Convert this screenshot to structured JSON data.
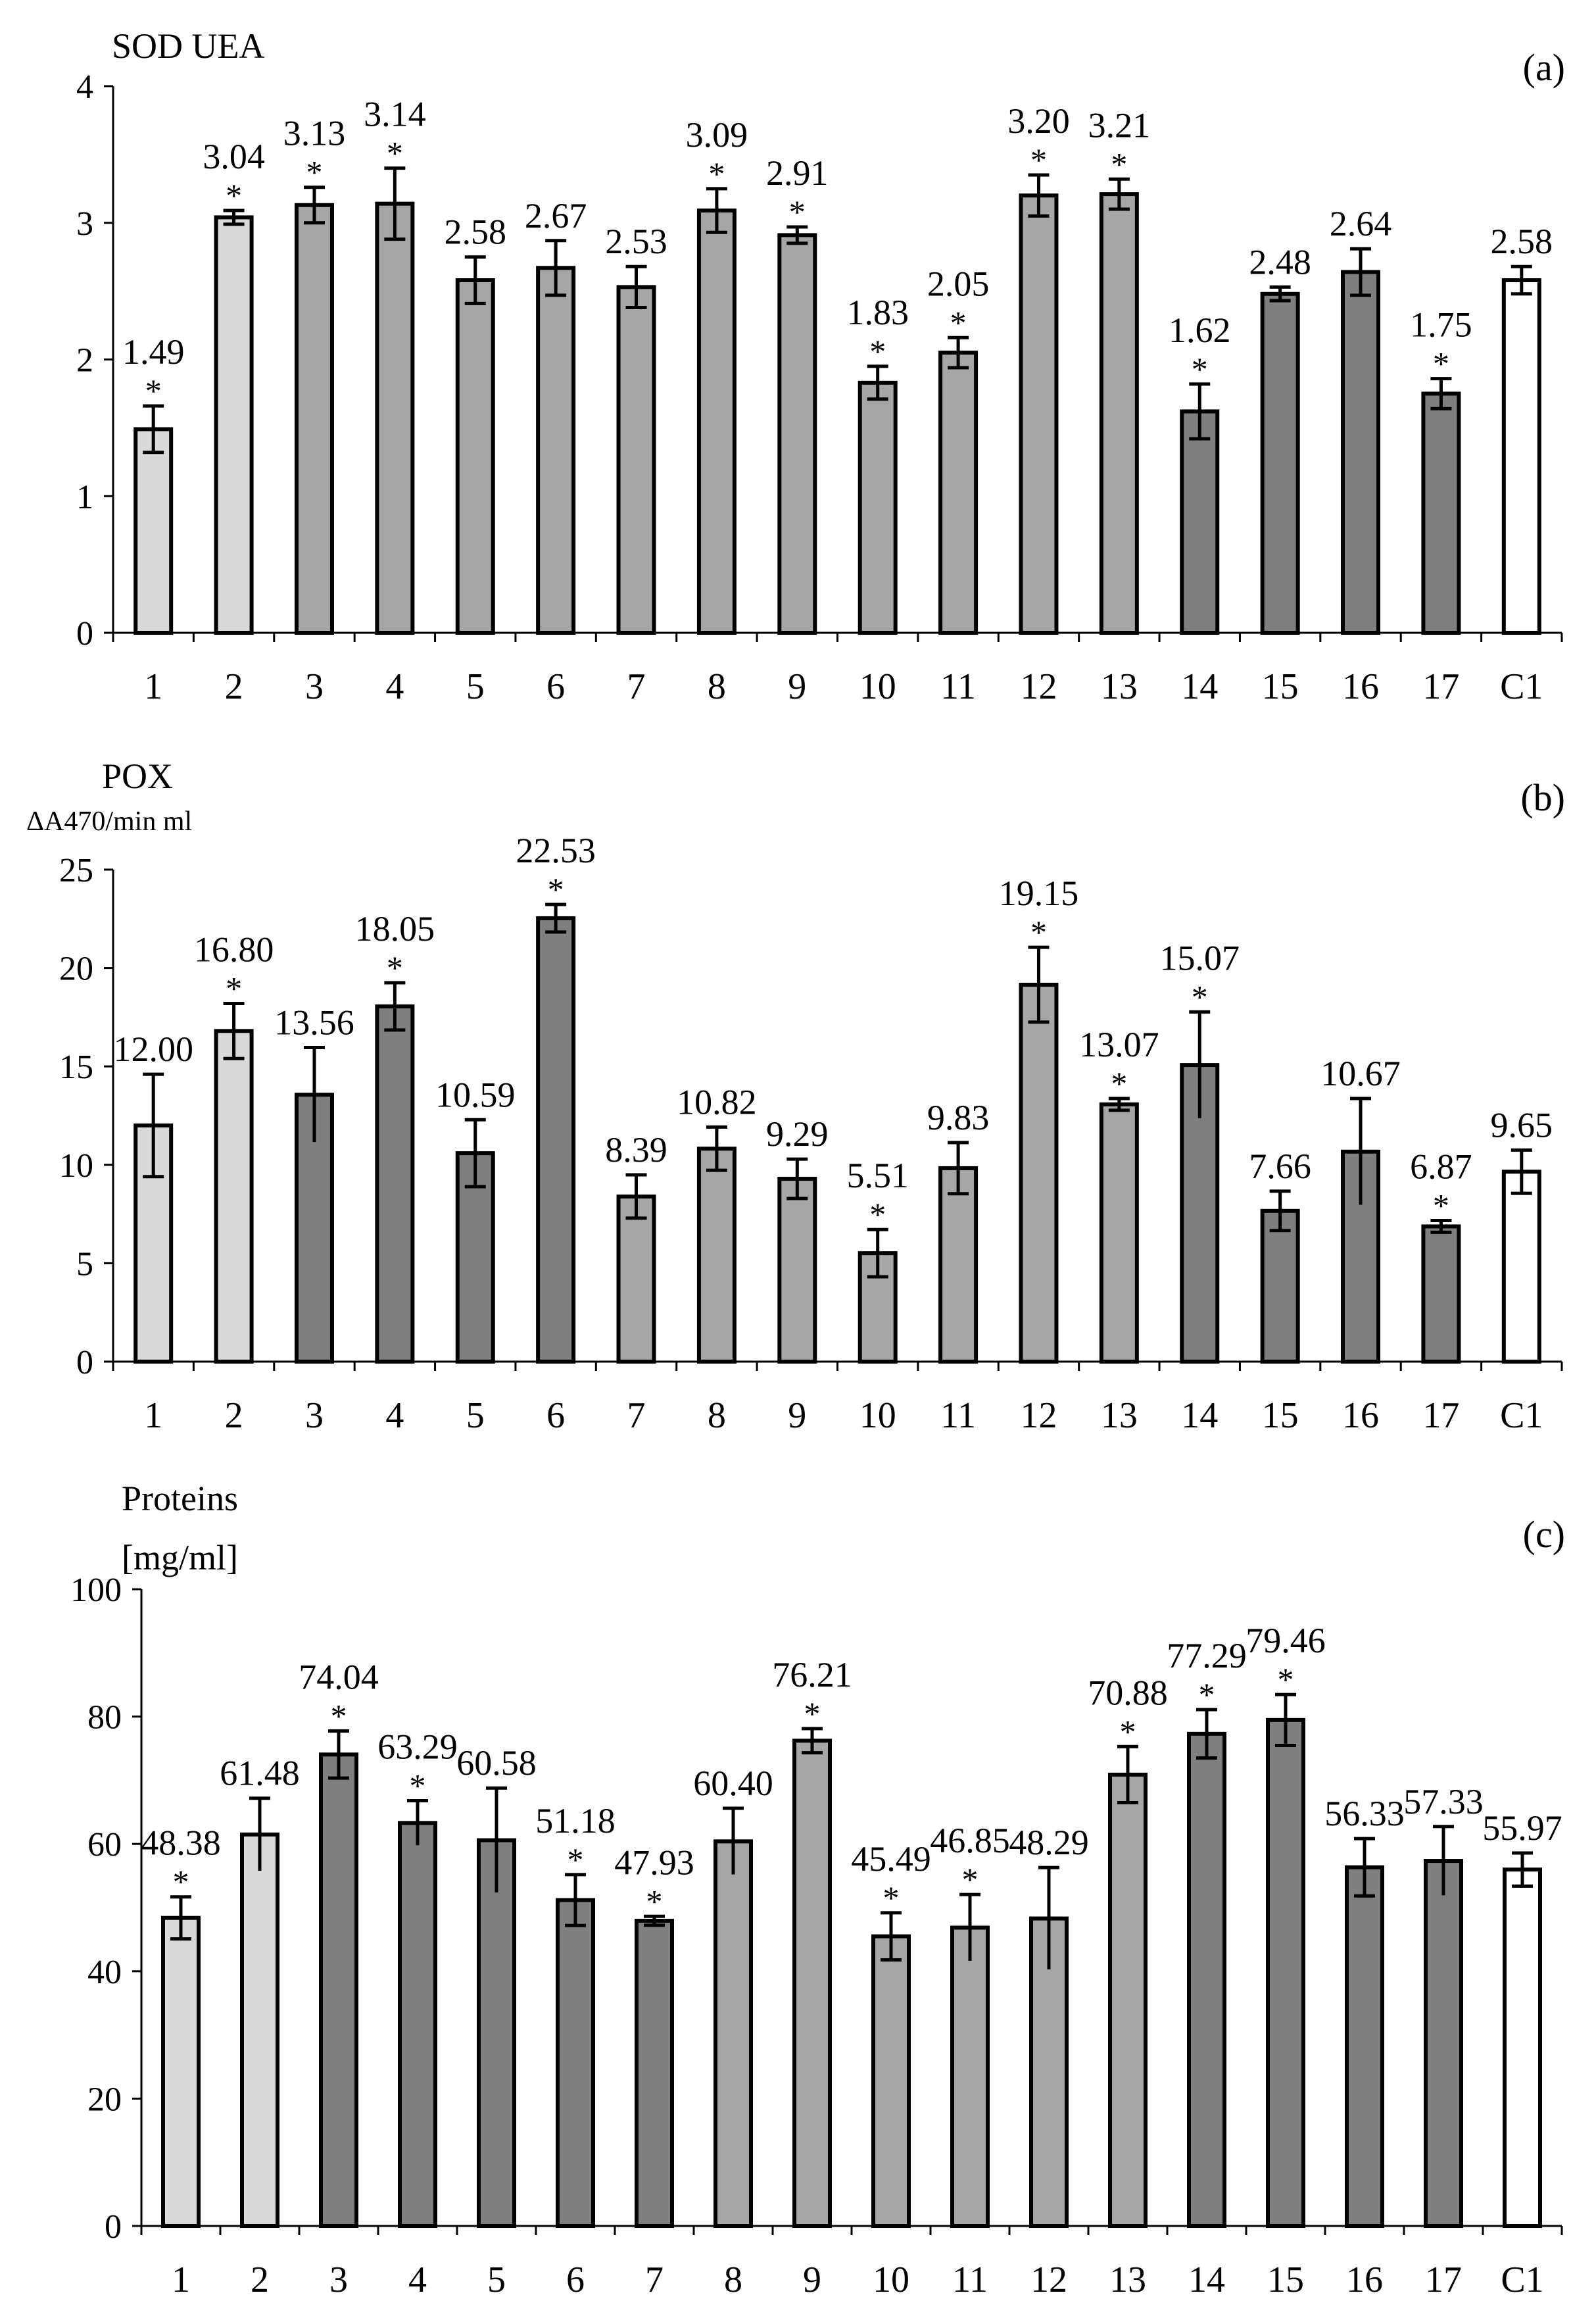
{
  "chart_data": [
    {
      "type": "bar",
      "panel": "(a)",
      "title": "SOD UEA",
      "unit": "",
      "categories": [
        "1",
        "2",
        "3",
        "4",
        "5",
        "6",
        "7",
        "8",
        "9",
        "10",
        "11",
        "12",
        "13",
        "14",
        "15",
        "16",
        "17",
        "C1"
      ],
      "values": [
        1.49,
        3.04,
        3.13,
        3.14,
        2.58,
        2.67,
        2.53,
        3.09,
        2.91,
        1.83,
        2.05,
        3.2,
        3.21,
        1.62,
        2.48,
        2.64,
        1.75,
        2.58
      ],
      "value_labels": [
        "1.49",
        "3.04",
        "3.13",
        "3.14",
        "2.58",
        "2.67",
        "2.53",
        "3.09",
        "2.91",
        "1.83",
        "2.05",
        "3.20",
        "3.21",
        "1.62",
        "2.48",
        "2.64",
        "1.75",
        "2.58"
      ],
      "errors": [
        0.17,
        0.05,
        0.13,
        0.26,
        0.17,
        0.2,
        0.15,
        0.16,
        0.06,
        0.12,
        0.11,
        0.15,
        0.11,
        0.2,
        0.05,
        0.17,
        0.11,
        0.1
      ],
      "error_style": [
        "box",
        "box",
        "box",
        "box",
        "box",
        "box",
        "box",
        "box",
        "box",
        "box",
        "box",
        "box",
        "box",
        "box",
        "box",
        "box",
        "box",
        "box"
      ],
      "significant": [
        true,
        true,
        true,
        true,
        false,
        false,
        false,
        true,
        true,
        true,
        true,
        true,
        true,
        true,
        false,
        false,
        true,
        false
      ],
      "shades": [
        "#d9d9d9",
        "#d9d9d9",
        "#a6a6a6",
        "#a6a6a6",
        "#a6a6a6",
        "#a6a6a6",
        "#a6a6a6",
        "#a6a6a6",
        "#a6a6a6",
        "#a6a6a6",
        "#a6a6a6",
        "#a6a6a6",
        "#a6a6a6",
        "#7f7f7f",
        "#7f7f7f",
        "#7f7f7f",
        "#7f7f7f",
        "#ffffff"
      ],
      "ylim": [
        0,
        4
      ],
      "yticks": [
        "0",
        "1",
        "2",
        "3",
        "4"
      ],
      "tick_step": 1
    },
    {
      "type": "bar",
      "panel": "(b)",
      "title": "POX",
      "unit": "ΔA470/min ml",
      "categories": [
        "1",
        "2",
        "3",
        "4",
        "5",
        "6",
        "7",
        "8",
        "9",
        "10",
        "11",
        "12",
        "13",
        "14",
        "15",
        "16",
        "17",
        "C1"
      ],
      "values": [
        12.0,
        16.8,
        13.56,
        18.05,
        10.59,
        22.53,
        8.39,
        10.82,
        9.29,
        5.51,
        9.83,
        19.15,
        13.07,
        15.07,
        7.66,
        10.67,
        6.87,
        9.65
      ],
      "value_labels": [
        "12.00",
        "16.80",
        "13.56",
        "18.05",
        "10.59",
        "22.53",
        "8.39",
        "10.82",
        "9.29",
        "5.51",
        "9.83",
        "19.15",
        "13.07",
        "15.07",
        "7.66",
        "10.67",
        "6.87",
        "9.65"
      ],
      "errors": [
        2.6,
        1.4,
        2.4,
        1.2,
        1.7,
        0.7,
        1.1,
        1.1,
        1.0,
        1.2,
        1.3,
        1.9,
        0.3,
        2.7,
        1.0,
        2.7,
        0.3,
        1.1
      ],
      "error_style": [
        "box",
        "box",
        "cross",
        "box",
        "box",
        "box",
        "box",
        "box",
        "box",
        "box",
        "box",
        "box",
        "box",
        "cross",
        "box",
        "cross",
        "box",
        "box"
      ],
      "significant": [
        false,
        true,
        false,
        true,
        false,
        true,
        false,
        false,
        false,
        true,
        false,
        true,
        true,
        true,
        false,
        false,
        true,
        false
      ],
      "shades": [
        "#d9d9d9",
        "#d9d9d9",
        "#7f7f7f",
        "#7f7f7f",
        "#7f7f7f",
        "#7f7f7f",
        "#a6a6a6",
        "#a6a6a6",
        "#a6a6a6",
        "#a6a6a6",
        "#a6a6a6",
        "#a6a6a6",
        "#a6a6a6",
        "#7f7f7f",
        "#7f7f7f",
        "#7f7f7f",
        "#7f7f7f",
        "#ffffff"
      ],
      "ylim": [
        0,
        25
      ],
      "yticks": [
        "0",
        "5",
        "10",
        "15",
        "20",
        "25"
      ],
      "tick_step": 5
    },
    {
      "type": "bar",
      "panel": "(c)",
      "title": "Proteins",
      "unit": "[mg/ml]",
      "categories": [
        "1",
        "2",
        "3",
        "4",
        "5",
        "6",
        "7",
        "8",
        "9",
        "10",
        "11",
        "12",
        "13",
        "14",
        "15",
        "16",
        "17",
        "C1"
      ],
      "values": [
        48.38,
        61.48,
        74.04,
        63.29,
        60.58,
        51.18,
        47.93,
        60.4,
        76.21,
        45.49,
        46.85,
        48.29,
        70.88,
        77.29,
        79.46,
        56.33,
        57.33,
        55.97
      ],
      "value_labels": [
        "48.38",
        "61.48",
        "74.04",
        "63.29",
        "60.58",
        "51.18",
        "47.93",
        "60.40",
        "76.21",
        "45.49",
        "46.85",
        "48.29",
        "70.88",
        "77.29",
        "79.46",
        "56.33",
        "57.33",
        "55.97"
      ],
      "errors": [
        3.3,
        5.7,
        3.7,
        3.5,
        8.2,
        4.0,
        0.7,
        5.2,
        1.9,
        3.7,
        5.2,
        8.0,
        4.4,
        3.8,
        4.0,
        4.5,
        5.4,
        2.6
      ],
      "error_style": [
        "box",
        "cross",
        "box",
        "cross",
        "cross",
        "box",
        "box",
        "cross",
        "box",
        "box",
        "cross",
        "cross",
        "box",
        "box",
        "box",
        "box",
        "cross",
        "box"
      ],
      "significant": [
        true,
        false,
        true,
        true,
        false,
        true,
        true,
        false,
        true,
        true,
        true,
        false,
        true,
        true,
        true,
        false,
        false,
        false
      ],
      "shades": [
        "#d9d9d9",
        "#d9d9d9",
        "#7f7f7f",
        "#7f7f7f",
        "#7f7f7f",
        "#7f7f7f",
        "#7f7f7f",
        "#a6a6a6",
        "#a6a6a6",
        "#a6a6a6",
        "#a6a6a6",
        "#a6a6a6",
        "#a6a6a6",
        "#7f7f7f",
        "#7f7f7f",
        "#7f7f7f",
        "#7f7f7f",
        "#ffffff"
      ],
      "ylim": [
        0,
        100
      ],
      "yticks": [
        "0",
        "20",
        "40",
        "60",
        "80",
        "100"
      ],
      "tick_step": 20
    }
  ],
  "significance_marker": "*"
}
